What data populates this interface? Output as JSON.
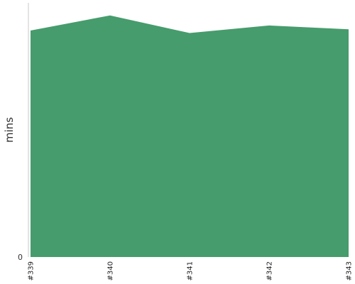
{
  "chart_data": {
    "type": "area",
    "categories": [
      "#339",
      "#340",
      "#341",
      "#342",
      "#343"
    ],
    "series": [
      {
        "values": [
          9.0,
          9.6,
          8.9,
          9.2,
          9.05
        ]
      }
    ],
    "ylabel": "mins",
    "yticks": [
      "0"
    ],
    "ylim": [
      0,
      10.1
    ],
    "grid": false,
    "colors": {
      "fill": "#469c6c",
      "axis": "#c8c8c8"
    }
  }
}
